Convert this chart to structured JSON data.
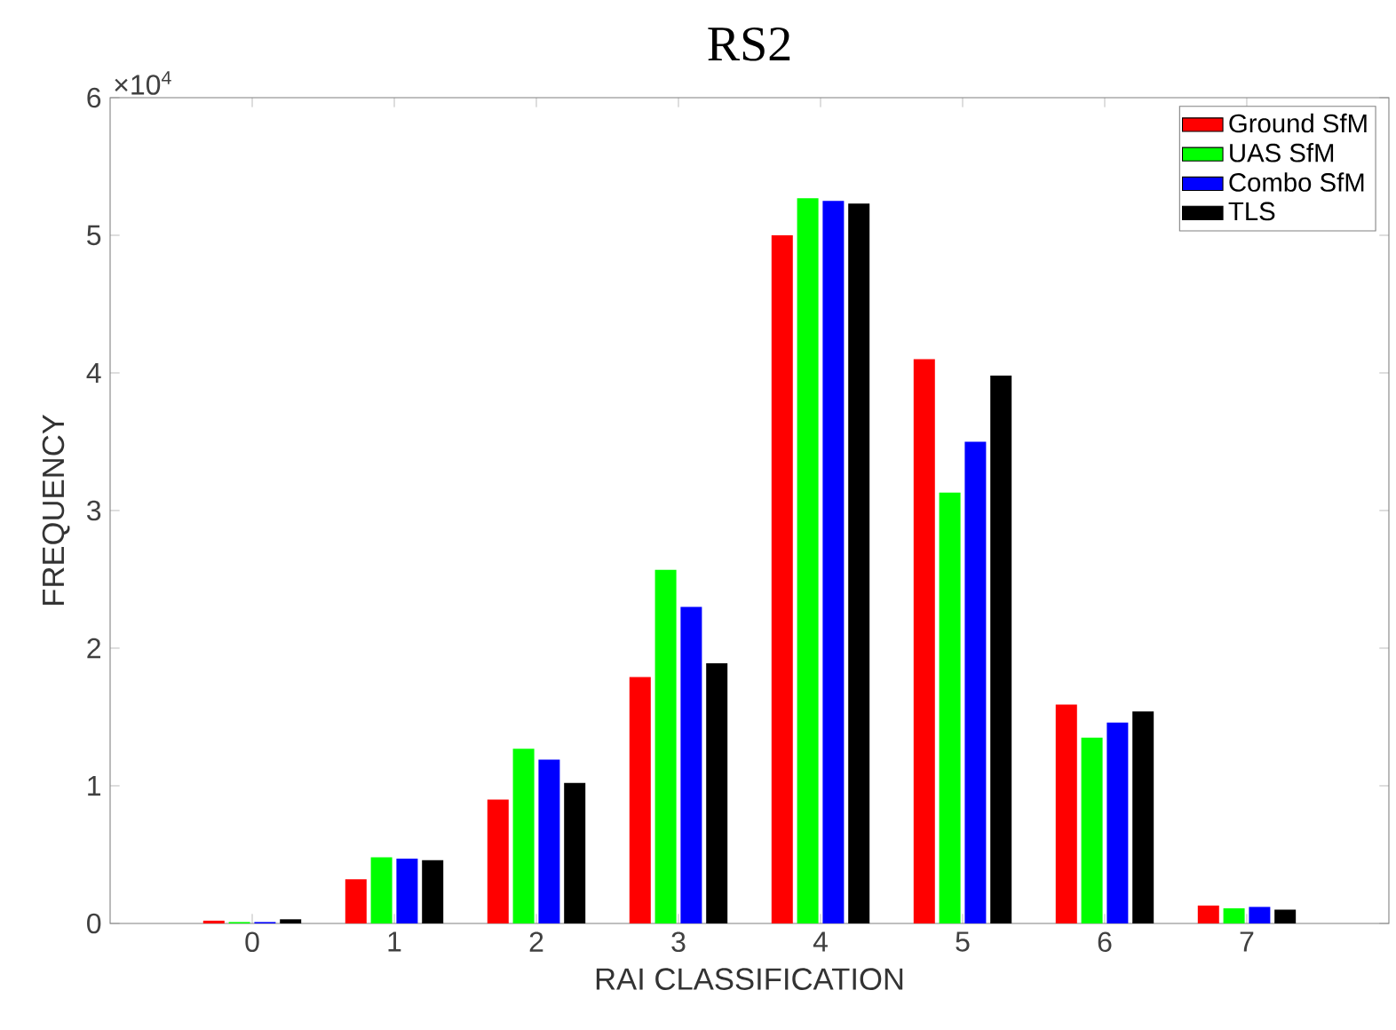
{
  "chart_data": {
    "type": "bar",
    "title": "RS2",
    "xlabel": "RAI CLASSIFICATION",
    "ylabel": "FREQUENCY",
    "annotations": [
      "×10$^{4}$"
    ],
    "categories": [
      "0",
      "1",
      "2",
      "3",
      "4",
      "5",
      "6",
      "7"
    ],
    "series": [
      {
        "name": "Ground SfM",
        "color": "#ff0000",
        "values": [
          0.02,
          0.32,
          0.9,
          1.79,
          5.0,
          4.1,
          1.59,
          0.13
        ]
      },
      {
        "name": "UAS SfM",
        "color": "#00ff00",
        "values": [
          0.01,
          0.48,
          1.27,
          2.57,
          5.27,
          3.13,
          1.35,
          0.11
        ]
      },
      {
        "name": "Combo SfM",
        "color": "#0000ff",
        "values": [
          0.01,
          0.47,
          1.19,
          2.3,
          5.25,
          3.5,
          1.46,
          0.12
        ]
      },
      {
        "name": "TLS",
        "color": "#000000",
        "values": [
          0.03,
          0.46,
          1.02,
          1.89,
          5.23,
          3.98,
          1.54,
          0.1
        ]
      }
    ],
    "ylim": [
      0,
      6
    ],
    "yticks": [
      0,
      1,
      2,
      3,
      4,
      5,
      6
    ],
    "grid": false,
    "legend": "top right"
  }
}
